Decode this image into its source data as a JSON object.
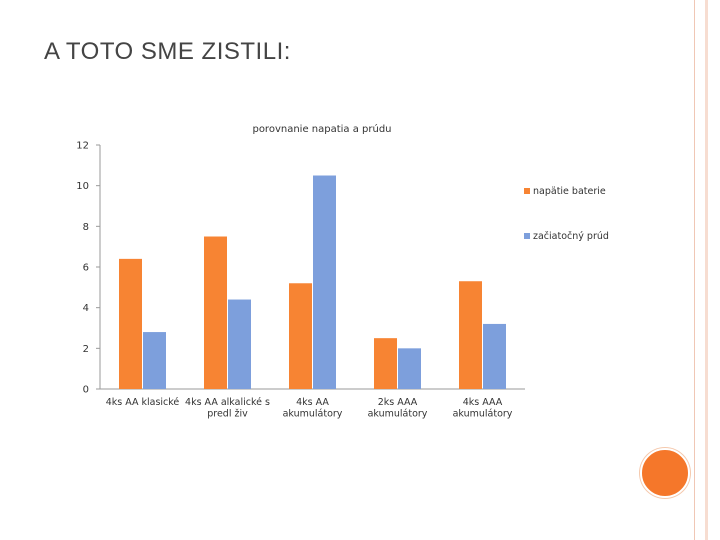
{
  "slide": {
    "title": "A TOTO SME ZISTILI:",
    "accent_color": "#f5772a"
  },
  "chart_data": {
    "type": "bar",
    "title": "porovnanie napatia a prúdu",
    "xlabel": "",
    "ylabel": "",
    "ylim": [
      0,
      12
    ],
    "yticks": [
      0,
      2,
      4,
      6,
      8,
      10,
      12
    ],
    "grid": false,
    "legend_position": "right",
    "categories": [
      [
        "4ks AA klasické"
      ],
      [
        "4ks AA alkalické s",
        "predl živ"
      ],
      [
        "4ks AA",
        "akumulátory"
      ],
      [
        "2ks AAA",
        "akumulátory"
      ],
      [
        "4ks AAA",
        "akumulátory"
      ]
    ],
    "series": [
      {
        "name": "napätie baterie",
        "color": "#f78433",
        "values": [
          6.4,
          7.5,
          5.2,
          2.5,
          5.3
        ]
      },
      {
        "name": "začiatočný prúd",
        "color": "#7d9fdc",
        "values": [
          2.8,
          4.4,
          10.5,
          2.0,
          3.2
        ]
      }
    ]
  }
}
